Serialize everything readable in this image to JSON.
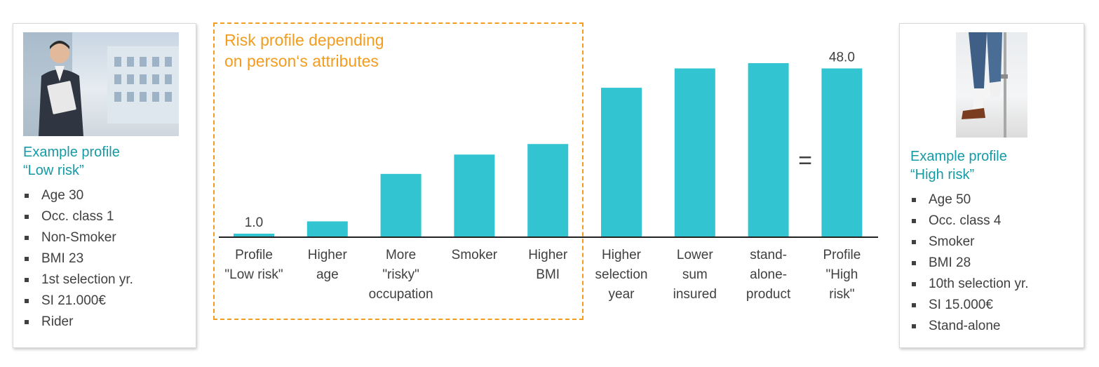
{
  "left_profile": {
    "title_line1": "Example profile",
    "title_line2": "“Low risk”",
    "attributes": [
      "Age 30",
      "Occ. class 1",
      "Non-Smoker",
      "BMI 23",
      "1st selection yr.",
      "SI 21.000€",
      "Rider"
    ],
    "photo_icon": "businesswoman-photo"
  },
  "right_profile": {
    "title_line1": "Example profile",
    "title_line2": "“High risk”",
    "attributes": [
      "Age 50",
      "Occ. class 4",
      "Smoker",
      "BMI 28",
      "10th selection yr.",
      "SI 15.000€",
      "Stand-alone"
    ],
    "photo_icon": "injured-leg-crutch-photo"
  },
  "highlight": {
    "label_line1": "Risk profile depending",
    "label_line2": "on person‘s attributes",
    "color": "#f39c1e"
  },
  "equals_sign": "=",
  "chart_data": {
    "type": "bar",
    "categories": [
      [
        "Profile",
        "\"Low risk\""
      ],
      [
        "Higher",
        "age"
      ],
      [
        "More",
        "\"risky\"",
        "occupation"
      ],
      [
        "Smoker"
      ],
      [
        "Higher",
        "BMI"
      ],
      [
        "Higher",
        "selection",
        "year"
      ],
      [
        "Lower",
        "sum",
        "insured"
      ],
      [
        "stand-",
        "alone-",
        "product"
      ],
      [
        "Profile",
        "\"High",
        "risk\""
      ]
    ],
    "values": [
      1.0,
      4.5,
      18.0,
      23.5,
      26.5,
      42.5,
      48.0,
      49.5,
      48.0
    ],
    "data_labels": [
      "1.0",
      "",
      "",
      "",
      "",
      "",
      "",
      "",
      "48.0"
    ],
    "ylim": [
      0,
      52
    ],
    "bar_color": "#33c4d2",
    "title": "",
    "xlabel": "",
    "ylabel": ""
  }
}
